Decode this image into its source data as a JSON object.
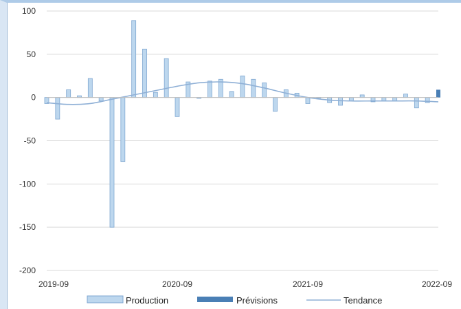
{
  "chart_data": {
    "type": "bar",
    "title": "",
    "xlabel": "",
    "ylabel": "",
    "ylim": [
      -200,
      100
    ],
    "yticks": [
      100,
      50,
      0,
      -50,
      -100,
      -150,
      -200
    ],
    "xtick_labels": [
      "2019-09",
      "2020-09",
      "2021-09",
      "2022-09"
    ],
    "grid": "horizontal",
    "legend_position": "bottom",
    "series": [
      {
        "name": "Production",
        "kind": "bar",
        "color": "#bdd7ee",
        "edge": "#7fa7d1",
        "months": [
          "2019-09",
          "2019-10",
          "2019-11",
          "2019-12",
          "2020-01",
          "2020-02",
          "2020-03",
          "2020-04",
          "2020-05",
          "2020-06",
          "2020-07",
          "2020-08",
          "2020-09",
          "2020-10",
          "2020-11",
          "2020-12",
          "2021-01",
          "2021-02",
          "2021-03",
          "2021-04",
          "2021-05",
          "2021-06",
          "2021-07",
          "2021-08",
          "2021-09",
          "2021-10",
          "2021-11",
          "2021-12",
          "2022-01",
          "2022-02",
          "2022-03",
          "2022-04",
          "2022-05",
          "2022-06",
          "2022-07",
          "2022-08"
        ],
        "values": [
          -7,
          -25,
          9,
          2,
          22,
          -4,
          -150,
          -74,
          89,
          56,
          6,
          45,
          -22,
          18,
          -1,
          19,
          21,
          7,
          25,
          21,
          17,
          -16,
          9,
          5,
          -7,
          0,
          -6,
          -9,
          -4,
          3,
          -5,
          -4,
          -4,
          4,
          -12,
          -6
        ]
      },
      {
        "name": "Prévisions",
        "kind": "bar",
        "color": "#4a7fb5",
        "months": [
          "2022-09"
        ],
        "values": [
          9
        ]
      },
      {
        "name": "Tendance",
        "kind": "line",
        "color": "#8fb0d6",
        "months": [
          "2019-09",
          "2019-11",
          "2020-01",
          "2020-03",
          "2020-05",
          "2020-07",
          "2020-09",
          "2020-11",
          "2021-01",
          "2021-03",
          "2021-05",
          "2021-07",
          "2021-09",
          "2021-11",
          "2022-01",
          "2022-03",
          "2022-05",
          "2022-07",
          "2022-09"
        ],
        "values": [
          -6,
          -8,
          -7,
          -2,
          3,
          8,
          13,
          17,
          18,
          16,
          11,
          5,
          0,
          -3,
          -4,
          -4,
          -4,
          -4,
          -5
        ]
      }
    ]
  }
}
